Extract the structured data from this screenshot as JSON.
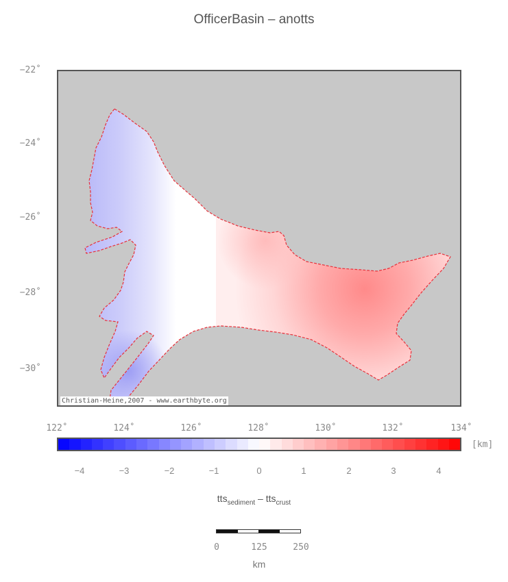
{
  "title": "OfficerBasin – anotts",
  "map": {
    "lat_labels": [
      "−22˚",
      "−24˚",
      "−26˚",
      "−28˚",
      "−30˚"
    ],
    "lon_labels": [
      "122˚",
      "124˚",
      "126˚",
      "128˚",
      "130˚",
      "132˚",
      "134˚"
    ],
    "extent": {
      "lon": [
        122,
        134
      ],
      "lat": [
        -31,
        -22
      ]
    },
    "background_color": "#c8c8c8",
    "outline_color": "#e8303a",
    "credit": "Christian-Heine,2007 - www.earthbyte.org"
  },
  "colorbar": {
    "unit": "[km]",
    "tick_labels": [
      "−4",
      "−3",
      "−2",
      "−1",
      "0",
      "1",
      "2",
      "3",
      "4"
    ],
    "range": [
      -4.5,
      4.5
    ],
    "low_color": "#0000ff",
    "mid_color": "#ffffff",
    "high_color": "#ff0000"
  },
  "formula": {
    "part1": "tts",
    "sub1": "sediment",
    "minus": " – ",
    "part2": "tts",
    "sub2": "crust"
  },
  "scalebar": {
    "labels": [
      "0",
      "125",
      "250"
    ],
    "unit": "km"
  }
}
